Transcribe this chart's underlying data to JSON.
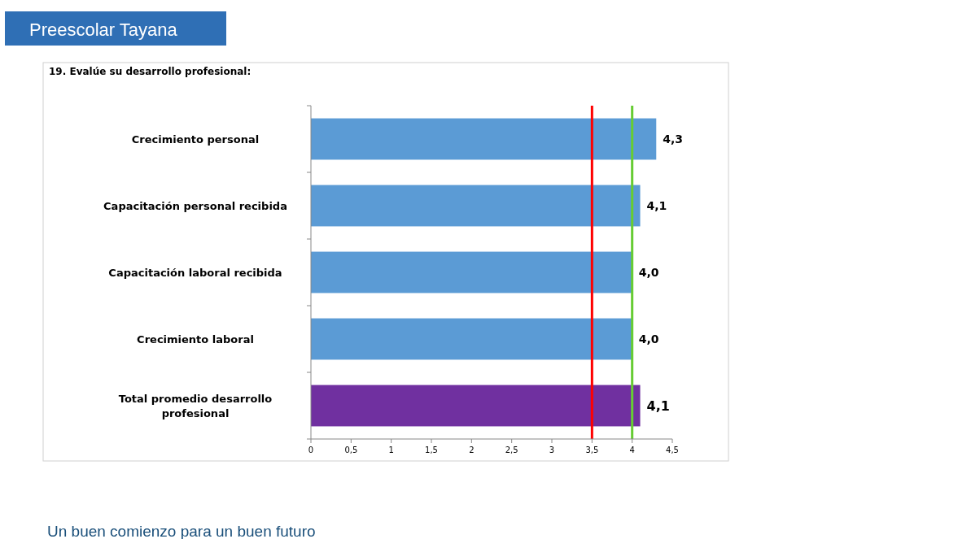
{
  "chart_data": {
    "type": "bar",
    "orientation": "horizontal",
    "title": "Preescolar Tayana",
    "subtitle": "19. Evalúe su desarrollo profesional:",
    "categories": [
      "Crecimiento personal",
      "Capacitación personal recibida",
      "Capacitación laboral recibida",
      "Crecimiento laboral",
      "Total promedio desarrollo profesional"
    ],
    "values": [
      4.3,
      4.1,
      4.0,
      4.0,
      4.1
    ],
    "value_labels": [
      "4,3",
      "4,1",
      "4,0",
      "4,0",
      "4,1"
    ],
    "colors": [
      "#5b9bd5",
      "#5b9bd5",
      "#5b9bd5",
      "#5b9bd5",
      "#7030a0"
    ],
    "xlim": [
      0,
      4.5
    ],
    "xticks": [
      0,
      {
        "value": 0.5,
        "label": "0,5"
      },
      1,
      {
        "value": 1.5,
        "label": "1,5"
      },
      2,
      {
        "value": 2.5,
        "label": "2,5"
      },
      3,
      {
        "value": 3.5,
        "label": "3,5"
      },
      4,
      {
        "value": 4.5,
        "label": "4,5"
      }
    ],
    "ref_lines": [
      {
        "axis": "x",
        "value": 3.5,
        "color": "#ff0000"
      },
      {
        "axis": "x",
        "value": 4,
        "color": "#66cc33"
      }
    ],
    "grid": false,
    "annotations": [
      "Un buen comienzo para un buen futuro"
    ]
  }
}
